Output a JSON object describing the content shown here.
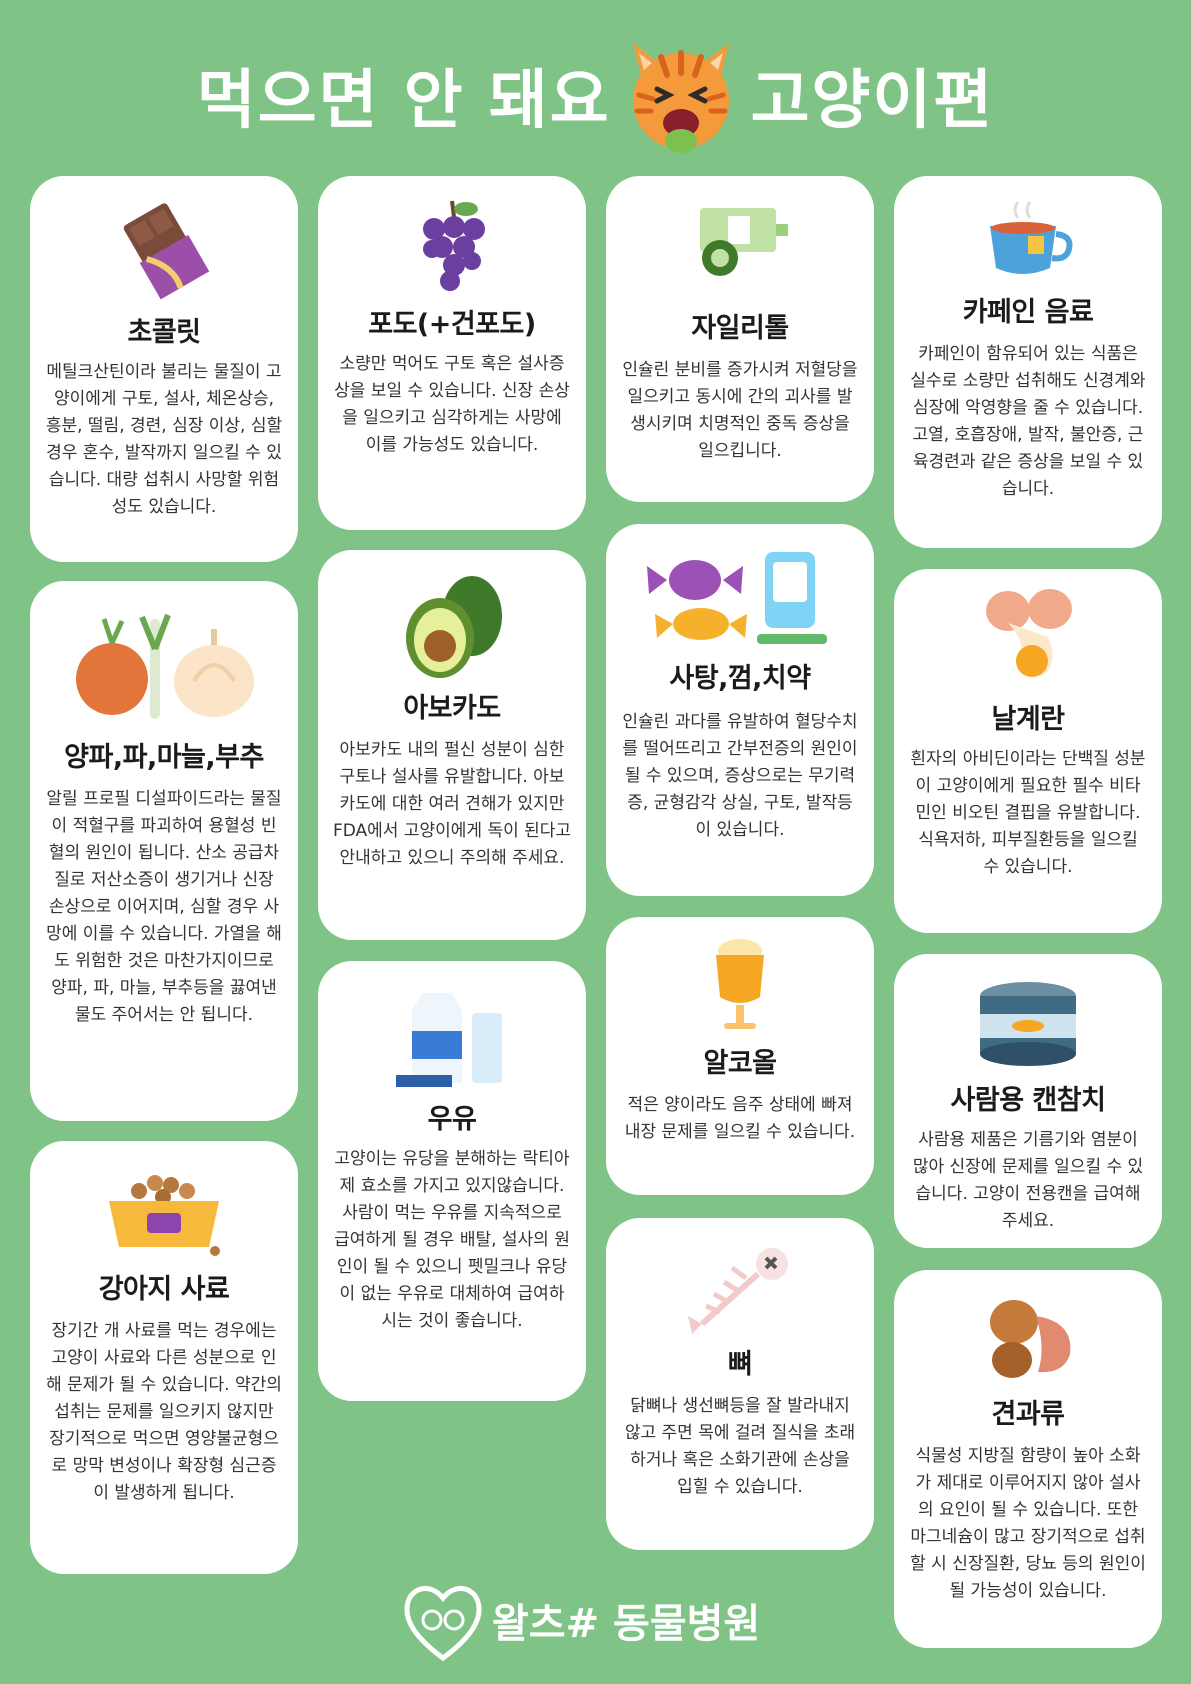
{
  "header": {
    "title_left": "먹으면 안 돼요",
    "title_right": "고양이편"
  },
  "cards": {
    "chocolate": {
      "title": "초콜릿",
      "desc": "메틸크산틴이라 불리는 물질이 고양이에게 구토, 설사, 체온상승, 흥분, 떨림, 경련, 심장 이상, 심할 경우 혼수, 발작까지 일으킬 수 있습니다. 대량 섭취시 사망할 위험성도 있습니다."
    },
    "grape": {
      "title": "포도(+건포도)",
      "desc": "소량만 먹어도 구토 혹은 설사증상을 보일 수 있습니다. 신장 손상을 일으키고 심각하게는 사망에 이를 가능성도 있습니다."
    },
    "xylitol": {
      "title": "자일리톨",
      "desc": "인슐린 분비를 증가시켜 저혈당을 일으키고 동시에 간의 괴사를 발생시키며 치명적인 중독 증상을 일으킵니다."
    },
    "caffeine": {
      "title": "카페인 음료",
      "desc": "카페인이 함유되어 있는 식품은 실수로 소량만 섭취해도 신경계와 심장에 악영향을 줄 수 있습니다. 고열, 호흡장애, 발작, 불안증, 근육경련과 같은 증상을 보일 수 있습니다."
    },
    "onion": {
      "title": "양파,파,마늘,부추",
      "desc": "알릴 프로필 디설파이드라는 물질이 적혈구를 파괴하여 용혈성 빈혈의 원인이 됩니다. 산소 공급차질로 저산소증이 생기거나 신장 손상으로 이어지며, 심할 경우 사망에 이를 수 있습니다. 가열을 해도 위험한 것은 마찬가지이므로 양파, 파, 마늘, 부추등을 끓여낸 물도 주어서는 안 됩니다."
    },
    "avocado": {
      "title": "아보카도",
      "desc": "아보카도 내의 펄신 성분이 심한 구토나 설사를 유발합니다. 아보카도에 대한 여러 견해가 있지만 FDA에서 고양이에게 독이 된다고 안내하고 있으니 주의해 주세요."
    },
    "candy": {
      "title": "사탕,껌,치약",
      "desc": "인슐린 과다를 유발하여 혈당수치를 떨어뜨리고 간부전증의 원인이 될 수 있으며, 증상으로는 무기력증, 균형감각 상실, 구토, 발작등이 있습니다."
    },
    "egg": {
      "title": "날계란",
      "desc": "흰자의 아비딘이라는 단백질 성분이 고양이에게 필요한 필수 비타민인 비오틴 결핍을 유발합니다. 식욕저하, 피부질환등을 일으킬 수 있습니다."
    },
    "milk": {
      "title": "우유",
      "desc": "고양이는 유당을 분해하는 락티아제 효소를 가지고 있지않습니다. 사람이 먹는 우유를 지속적으로 급여하게 될 경우 배탈, 설사의 원인이 될 수 있으니 펫밀크나 유당이 없는 우유로 대체하여 급여하시는 것이 좋습니다."
    },
    "alcohol": {
      "title": "알코올",
      "desc": "적은 양이라도 음주 상태에 빠져 내장 문제를 일으킬 수 있습니다."
    },
    "tuna": {
      "title": "사람용 캔참치",
      "desc": "사람용 제품은 기름기와 염분이 많아 신장에 문제를 일으킬 수 있습니다. 고양이 전용캔을 급여해주세요."
    },
    "dogfood": {
      "title": "강아지 사료",
      "desc": "장기간 개 사료를 먹는 경우에는 고양이 사료와 다른 성분으로 인해 문제가 될 수 있습니다. 약간의 섭취는 문제를 일으키지 않지만 장기적으로 먹으면 영양불균형으로 망막 변성이나 확장형 심근증이 발생하게 됩니다."
    },
    "bone": {
      "title": "뼈",
      "desc": "닭뼈나 생선뼈등을 잘 발라내지 않고 주면 목에 걸려 질식을 초래하거나 혹은 소화기관에 손상을 입힐 수 있습니다."
    },
    "nuts": {
      "title": "견과류",
      "desc": "식물성 지방질 함량이 높아 소화가 제대로 이루어지지 않아 설사의 요인이 될 수 있습니다. 또한 마그네슘이 많고 장기적으로 섭취할 시 신장질환, 당뇨 등의 원인이 될 가능성이 있습니다."
    }
  },
  "footer": {
    "brand": "왈츠# 동물병원"
  },
  "colors": {
    "background": "#7fc486",
    "card": "#ffffff",
    "text": "#333333"
  }
}
